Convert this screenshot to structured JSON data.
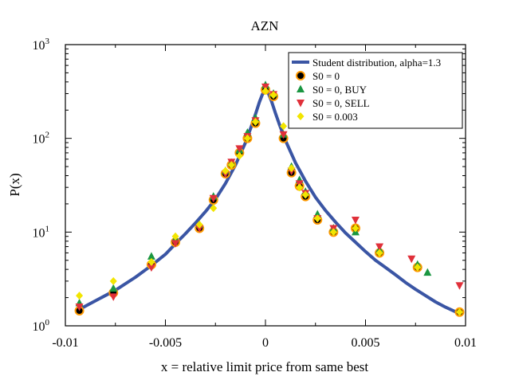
{
  "chart_data": {
    "type": "scatter",
    "title": "AZN",
    "xlabel": "x = relative limit price from same best",
    "ylabel": "P(x)",
    "xlim": [
      -0.01,
      0.01
    ],
    "ylim": [
      1,
      1000
    ],
    "y_scale": "log",
    "grid": false,
    "legend_position": "top-right",
    "x_ticks": [
      {
        "value": -0.01,
        "label": "-0.01"
      },
      {
        "value": -0.005,
        "label": "-0.005"
      },
      {
        "value": 0,
        "label": "0"
      },
      {
        "value": 0.005,
        "label": "0.005"
      },
      {
        "value": 0.01,
        "label": "0.01"
      }
    ],
    "y_ticks": [
      {
        "value": 1,
        "base": "10",
        "exp": "0"
      },
      {
        "value": 10,
        "base": "10",
        "exp": "1"
      },
      {
        "value": 100,
        "base": "10",
        "exp": "2"
      },
      {
        "value": 1000,
        "base": "10",
        "exp": "3"
      }
    ],
    "series": [
      {
        "name": "Student distribution, alpha=1.3",
        "style": "line",
        "color": "#3a55a4",
        "points": [
          [
            -0.0093,
            1.5
          ],
          [
            -0.0085,
            1.85
          ],
          [
            -0.0075,
            2.4
          ],
          [
            -0.0065,
            3.3
          ],
          [
            -0.0057,
            4.4
          ],
          [
            -0.005,
            5.8
          ],
          [
            -0.0045,
            7.5
          ],
          [
            -0.004,
            9.6
          ],
          [
            -0.0035,
            12.5
          ],
          [
            -0.003,
            16.5
          ],
          [
            -0.0025,
            22.5
          ],
          [
            -0.002,
            33
          ],
          [
            -0.0015,
            52
          ],
          [
            -0.001,
            90
          ],
          [
            -0.0007,
            135
          ],
          [
            -0.0005,
            180
          ],
          [
            -0.0003,
            245
          ],
          [
            -0.00015,
            295
          ],
          [
            0,
            320
          ],
          [
            0.00015,
            300
          ],
          [
            0.0003,
            250
          ],
          [
            0.0005,
            185
          ],
          [
            0.0007,
            140
          ],
          [
            0.001,
            95
          ],
          [
            0.0015,
            55
          ],
          [
            0.002,
            35
          ],
          [
            0.0025,
            23.5
          ],
          [
            0.003,
            17
          ],
          [
            0.0035,
            12.8
          ],
          [
            0.004,
            9.8
          ],
          [
            0.0045,
            7.8
          ],
          [
            0.005,
            6.2
          ],
          [
            0.0055,
            5.0
          ],
          [
            0.006,
            4.2
          ],
          [
            0.0065,
            3.5
          ],
          [
            0.007,
            2.9
          ],
          [
            0.0075,
            2.45
          ],
          [
            0.008,
            2.1
          ],
          [
            0.0085,
            1.8
          ],
          [
            0.009,
            1.58
          ],
          [
            0.0097,
            1.35
          ]
        ]
      },
      {
        "name": "S0 = 0",
        "style": "circle",
        "color": "#000000",
        "edge": "#ff9900",
        "points": [
          [
            -0.0093,
            1.45
          ],
          [
            -0.0076,
            2.25
          ],
          [
            -0.0057,
            4.5
          ],
          [
            -0.0045,
            7.8
          ],
          [
            -0.0033,
            11
          ],
          [
            -0.0026,
            22
          ],
          [
            -0.002,
            42
          ],
          [
            -0.0017,
            52
          ],
          [
            -0.0013,
            70
          ],
          [
            -0.0009,
            100
          ],
          [
            -0.0005,
            145
          ],
          [
            0,
            330
          ],
          [
            0.0004,
            280
          ],
          [
            0.0009,
            100
          ],
          [
            0.0013,
            43
          ],
          [
            0.0017,
            31
          ],
          [
            0.002,
            24
          ],
          [
            0.0026,
            13.5
          ],
          [
            0.0034,
            10
          ],
          [
            0.0045,
            11
          ],
          [
            0.0057,
            6
          ],
          [
            0.0076,
            4.2
          ],
          [
            0.0097,
            1.4
          ]
        ]
      },
      {
        "name": "S0 = 0, BUY",
        "style": "triangle-up",
        "color": "#1a9641",
        "points": [
          [
            -0.0093,
            1.75
          ],
          [
            -0.0076,
            2.5
          ],
          [
            -0.0057,
            5.5
          ],
          [
            -0.0045,
            8.5
          ],
          [
            -0.0033,
            12
          ],
          [
            -0.0026,
            24
          ],
          [
            -0.002,
            45
          ],
          [
            -0.0017,
            55
          ],
          [
            -0.0013,
            75
          ],
          [
            -0.0009,
            115
          ],
          [
            -0.0005,
            165
          ],
          [
            0,
            370
          ],
          [
            0.0004,
            300
          ],
          [
            0.0009,
            110
          ],
          [
            0.0013,
            50
          ],
          [
            0.0017,
            36
          ],
          [
            0.002,
            27
          ],
          [
            0.0026,
            15.5
          ],
          [
            0.0034,
            11
          ],
          [
            0.0045,
            10
          ],
          [
            0.0057,
            6.5
          ],
          [
            0.0076,
            4.5
          ],
          [
            0.0081,
            3.7
          ]
        ]
      },
      {
        "name": "S0 = 0, SELL",
        "style": "triangle-down",
        "color": "#e0303a",
        "points": [
          [
            -0.0093,
            1.6
          ],
          [
            -0.0076,
            2.05
          ],
          [
            -0.0057,
            4.2
          ],
          [
            -0.0045,
            7.6
          ],
          [
            -0.0033,
            11
          ],
          [
            -0.0026,
            23
          ],
          [
            -0.002,
            42
          ],
          [
            -0.0017,
            56
          ],
          [
            -0.0013,
            78
          ],
          [
            -0.0009,
            105
          ],
          [
            -0.0005,
            155
          ],
          [
            0,
            355
          ],
          [
            0.0004,
            295
          ],
          [
            0.0009,
            110
          ],
          [
            0.0013,
            45
          ],
          [
            0.0017,
            33
          ],
          [
            0.002,
            26
          ],
          [
            0.0026,
            14
          ],
          [
            0.0034,
            11
          ],
          [
            0.0045,
            13.5
          ],
          [
            0.0057,
            7
          ],
          [
            0.0073,
            5.2
          ],
          [
            0.0097,
            2.7
          ]
        ]
      },
      {
        "name": "S0 = 0.003",
        "style": "diamond",
        "color": "#f2e500",
        "points": [
          [
            -0.0093,
            2.1
          ],
          [
            -0.0076,
            3
          ],
          [
            -0.0057,
            4.8
          ],
          [
            -0.0045,
            9
          ],
          [
            -0.0033,
            12
          ],
          [
            -0.0026,
            18
          ],
          [
            -0.002,
            45
          ],
          [
            -0.0017,
            52
          ],
          [
            -0.0013,
            65
          ],
          [
            -0.0009,
            100
          ],
          [
            -0.0005,
            150
          ],
          [
            0,
            320
          ],
          [
            0.0004,
            290
          ],
          [
            0.0009,
            135
          ],
          [
            0.0013,
            48
          ],
          [
            0.0017,
            30
          ],
          [
            0.002,
            25
          ],
          [
            0.0026,
            14
          ],
          [
            0.0034,
            10
          ],
          [
            0.0045,
            11
          ],
          [
            0.0057,
            6
          ],
          [
            0.0076,
            4.2
          ],
          [
            0.0097,
            1.4
          ]
        ]
      }
    ]
  }
}
